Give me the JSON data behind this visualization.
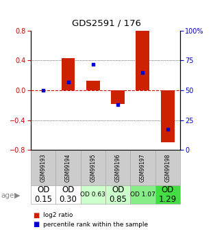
{
  "title": "GDS2591 / 176",
  "samples": [
    "GSM99193",
    "GSM99194",
    "GSM99195",
    "GSM99196",
    "GSM99197",
    "GSM99198"
  ],
  "log2_ratios": [
    0.0,
    0.43,
    0.13,
    -0.18,
    0.8,
    -0.7
  ],
  "percentile_ranks": [
    50,
    57,
    72,
    38,
    65,
    17
  ],
  "age_labels": [
    "OD\n0.15",
    "OD\n0.30",
    "OD 0.63",
    "OD\n0.85",
    "OD 1.07",
    "OD\n1.29"
  ],
  "age_fontsize": [
    8.5,
    8.5,
    6.5,
    8.5,
    6.5,
    8.5
  ],
  "age_bg_colors": [
    "#ffffff",
    "#ffffff",
    "#ccffcc",
    "#ccffcc",
    "#88ee88",
    "#44dd44"
  ],
  "bar_color": "#cc2200",
  "dot_color": "#0000cc",
  "ylim": [
    -0.8,
    0.8
  ],
  "yticks_left": [
    -0.8,
    -0.4,
    0.0,
    0.4,
    0.8
  ],
  "yticks_right_vals": [
    0,
    25,
    50,
    75,
    100
  ],
  "yticks_right_labels": [
    "0",
    "25",
    "50",
    "75",
    "100%"
  ],
  "bar_width": 0.55,
  "background_color": "#ffffff",
  "zero_line_color": "#cc0000",
  "sample_bg": "#cccccc"
}
